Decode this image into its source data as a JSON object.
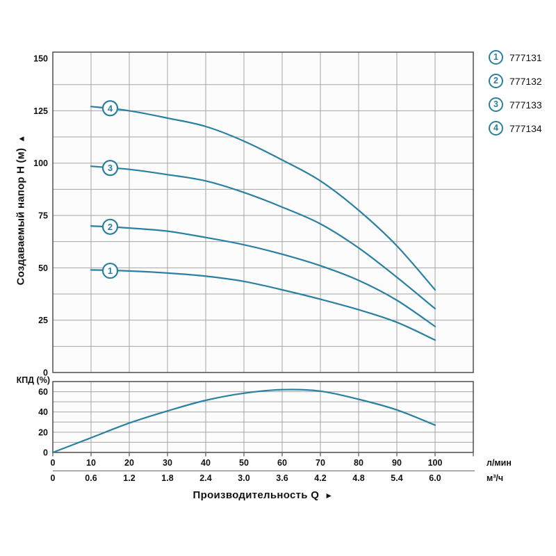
{
  "colors": {
    "curve": "#2a80a2",
    "marker_stroke": "#2b7f9e",
    "grid": "#a5a5a5",
    "frame": "#4d4d4d",
    "separator": "#7a7a7a",
    "text": "#111111",
    "plot_bg": "#fcfcfc"
  },
  "head_chart_ylabel": "Создаваемый напор Н (м)",
  "head_chart_ylabel_arrow": "▲",
  "eff_chart_ylabel": "КПД (%)",
  "x_axis_title": "Производительность Q",
  "x_axis_title_arrow": "►",
  "x_unit_row1": "л/мин",
  "x_unit_row2": "м³/ч",
  "legend": {
    "items": [
      {
        "num": "1",
        "code": "777131"
      },
      {
        "num": "2",
        "code": "777132"
      },
      {
        "num": "3",
        "code": "777133"
      },
      {
        "num": "4",
        "code": "777134"
      }
    ]
  },
  "chart_data": [
    {
      "type": "line",
      "title": "Pump head curves H(Q)",
      "ylabel": "Создаваемый напор Н (м)",
      "xlabel": "Производительность Q",
      "ylim": [
        0,
        153
      ],
      "xlim": [
        0,
        110
      ],
      "y_ticks": [
        0,
        25,
        50,
        75,
        100,
        125,
        150
      ],
      "y_minor_step": 12.5,
      "x_grid_step": 10,
      "grid": true,
      "legend_position": "top-right",
      "x": [
        10,
        20,
        30,
        40,
        50,
        60,
        70,
        80,
        90,
        100
      ],
      "series": [
        {
          "label": "1",
          "code": "777131",
          "values": [
            49,
            48.5,
            47.5,
            46,
            43.5,
            39.5,
            35,
            30,
            24,
            15.5
          ],
          "label_point": [
            15,
            48.6
          ]
        },
        {
          "label": "2",
          "code": "777132",
          "values": [
            70,
            69,
            67.5,
            64.5,
            61,
            56.5,
            51,
            44,
            34.5,
            22
          ],
          "label_point": [
            15,
            69.6
          ]
        },
        {
          "label": "3",
          "code": "777133",
          "values": [
            98.5,
            97,
            94.5,
            91.5,
            86,
            79,
            71,
            59.5,
            45.5,
            30.5
          ],
          "label_point": [
            15,
            97.7
          ]
        },
        {
          "label": "4",
          "code": "777134",
          "values": [
            127,
            125,
            121.5,
            117.5,
            110.5,
            101.5,
            91.5,
            77.5,
            60.5,
            39.5
          ],
          "label_point": [
            15,
            126.2
          ]
        }
      ]
    },
    {
      "type": "line",
      "title": "Pump efficiency curve",
      "ylabel": "КПД (%)",
      "ylim": [
        0,
        70
      ],
      "xlim": [
        0,
        110
      ],
      "y_ticks": [
        0,
        20,
        40,
        60
      ],
      "y_minor_step": 10,
      "x_grid_step": 10,
      "grid": true,
      "x": [
        0,
        10,
        20,
        30,
        40,
        50,
        60,
        70,
        80,
        90,
        100
      ],
      "values": [
        0,
        14.5,
        29,
        41,
        51.5,
        58.5,
        62,
        60.5,
        52.5,
        42,
        27
      ]
    }
  ],
  "x_ticks_lmin": [
    "0",
    "10",
    "20",
    "30",
    "40",
    "50",
    "60",
    "70",
    "80",
    "90",
    "100"
  ],
  "x_ticks_m3h": [
    "0",
    "0.6",
    "1.2",
    "1.8",
    "2.4",
    "3.0",
    "3.6",
    "4.2",
    "4.8",
    "5.4",
    "6.0"
  ]
}
